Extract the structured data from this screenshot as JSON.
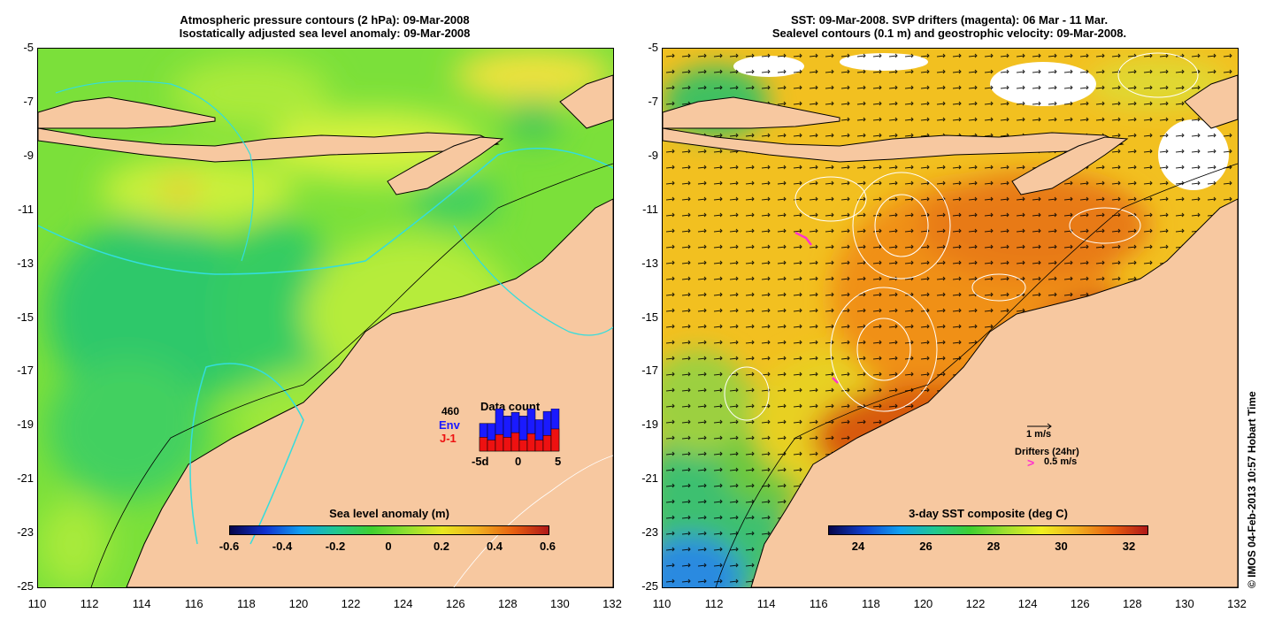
{
  "left_panel": {
    "title_line1": "Atmospheric pressure contours (2 hPa): 09-Mar-2008",
    "title_line2": "Isostatically adjusted sea level anomaly: 09-Mar-2008",
    "colorbar": {
      "title": "Sea level anomaly (m)",
      "labels": [
        "-0.6",
        "-0.4",
        "-0.2",
        "0",
        "0.2",
        "0.4",
        "0.6"
      ]
    },
    "data_count": {
      "title": "Data count",
      "max_label": "460",
      "series": [
        "Env",
        "J-1"
      ],
      "series_colors": [
        "#1a1aff",
        "#ee1111"
      ],
      "axis_labels": [
        "-5d",
        "0",
        "5"
      ],
      "env_values": [
        300,
        300,
        460,
        380,
        420,
        380,
        460,
        340,
        430,
        460
      ],
      "j1_values": [
        150,
        120,
        180,
        150,
        200,
        120,
        190,
        120,
        170,
        240
      ]
    }
  },
  "right_panel": {
    "title_line1": "SST: 09-Mar-2008. SVP drifters (magenta): 06 Mar - 11 Mar.",
    "title_line2": "Sealevel contours (0.1 m) and geostrophic velocity: 09-Mar-2008.",
    "colorbar": {
      "title": "3-day SST composite (deg C)",
      "labels": [
        "24",
        "26",
        "28",
        "30",
        "32"
      ]
    },
    "velocity_scale": "1 m/s",
    "drifter_legend": "Drifters (24hr)",
    "drifter_symbol": ">",
    "drifter_scale": "0.5 m/s"
  },
  "axes": {
    "y_ticks": [
      "-5",
      "-7",
      "-9",
      "-11",
      "-13",
      "-15",
      "-17",
      "-19",
      "-21",
      "-23",
      "-25"
    ],
    "x_ticks": [
      "110",
      "112",
      "114",
      "116",
      "118",
      "120",
      "122",
      "124",
      "126",
      "128",
      "130",
      "132"
    ]
  },
  "credit": "© IMOS 04-Feb-2013 10:57 Hobart Time",
  "colors": {
    "land": "#f7c8a0",
    "ocean_green": "#5fd43a",
    "ocean_yellow": "#d9f23c",
    "sst_orange": "#f0a020",
    "sst_red": "#c83a10",
    "drifter": "#ff33cc",
    "pressure_contour": "#33dddd"
  }
}
